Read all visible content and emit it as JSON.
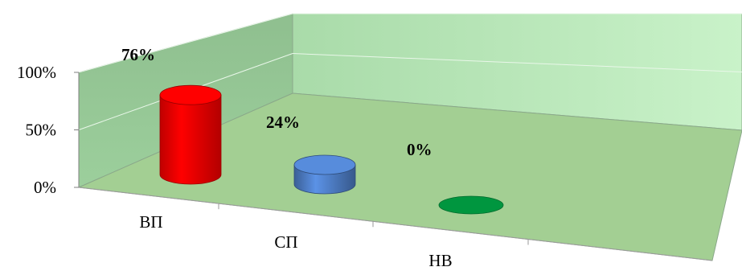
{
  "chart_data": {
    "type": "bar",
    "style": "3d-cylinder",
    "categories": [
      "ВП",
      "СП",
      "НВ"
    ],
    "values": [
      76,
      24,
      0
    ],
    "data_labels": [
      "76%",
      "24%",
      "0%"
    ],
    "y_ticks": [
      "0%",
      "50%",
      "100%"
    ],
    "ylim": [
      0,
      100
    ],
    "grid": true,
    "legend": "none",
    "colors": [
      "#ff0000",
      "#4f7fc8",
      "#00963f"
    ],
    "wall_color": "#b8ebb8",
    "floor_color": "#a3cf93"
  }
}
